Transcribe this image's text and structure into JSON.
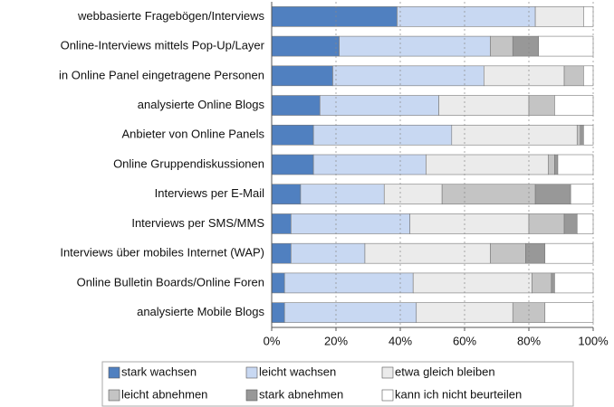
{
  "chart_data": {
    "type": "stacked_barh",
    "categories": [
      "webbasierte Fragebögen/Interviews",
      "Online-Interviews mittels Pop-Up/Layer",
      "in Online Panel eingetragene Personen",
      "analysierte Online Blogs",
      "Anbieter von Online Panels",
      "Online Gruppendiskussionen",
      "Interviews per E-Mail",
      "Interviews per SMS/MMS",
      "Interviews über mobiles Internet (WAP)",
      "Online Bulletin Boards/Online Foren",
      "analysierte Mobile Blogs"
    ],
    "series": [
      {
        "name": "stark wachsen",
        "color": "#5080c0",
        "values": [
          39,
          21,
          19,
          15,
          13,
          13,
          9,
          6,
          6,
          4,
          4
        ]
      },
      {
        "name": "leicht wachsen",
        "color": "#c8d8f2",
        "values": [
          43,
          47,
          47,
          37,
          43,
          35,
          26,
          37,
          23,
          40,
          41
        ]
      },
      {
        "name": "etwa gleich bleiben",
        "color": "#ebebeb",
        "values": [
          15,
          0,
          25,
          28,
          39,
          38,
          18,
          37,
          39,
          37,
          30
        ]
      },
      {
        "name": "leicht abnehmen",
        "color": "#c4c4c4",
        "values": [
          0,
          7,
          6,
          8,
          1,
          2,
          29,
          11,
          11,
          6,
          10
        ]
      },
      {
        "name": "stark abnehmen",
        "color": "#989898",
        "values": [
          0,
          8,
          0,
          0,
          1,
          1,
          11,
          4,
          6,
          1,
          0
        ]
      },
      {
        "name": "kann ich nicht beurteilen",
        "color": "#ffffff",
        "values": [
          3,
          17,
          3,
          12,
          3,
          11,
          7,
          5,
          15,
          12,
          15
        ]
      }
    ],
    "xlim": [
      0,
      100
    ],
    "xticks": [
      {
        "value": 0,
        "label": "0%"
      },
      {
        "value": 20,
        "label": "20%"
      },
      {
        "value": 40,
        "label": "40%"
      },
      {
        "value": 60,
        "label": "60%"
      },
      {
        "value": 80,
        "label": "80%"
      },
      {
        "value": 100,
        "label": "100%"
      }
    ],
    "grid": true
  }
}
